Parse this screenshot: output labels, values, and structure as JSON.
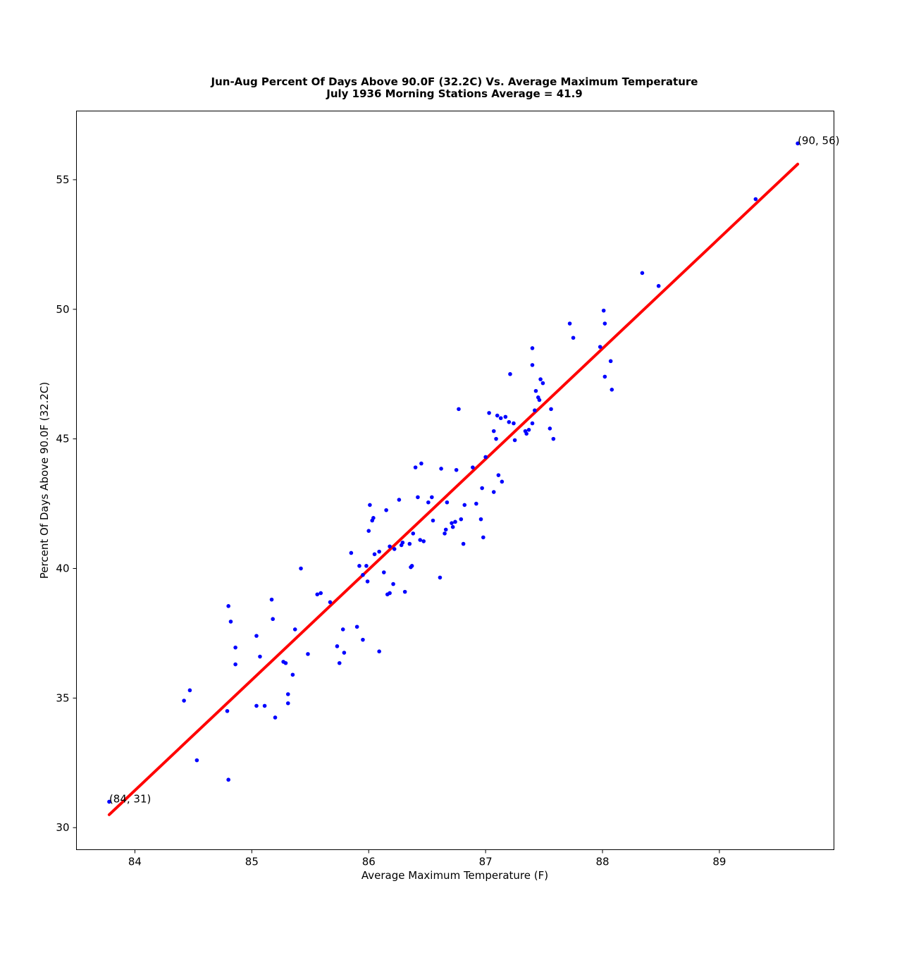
{
  "chart_data": {
    "type": "scatter",
    "title": "Jun-Aug Percent Of Days Above 90.0F (32.2C) Vs. Average Maximum Temperature",
    "subtitle": "July 1936 Morning Stations  Average = 41.9",
    "xlabel": "Average Maximum Temperature (F)",
    "ylabel": "Percent Of Days Above 90.0F (32.2C)",
    "xlim": [
      83.5,
      89.98
    ],
    "ylim": [
      29.15,
      57.65
    ],
    "xticks": [
      84,
      85,
      86,
      87,
      88,
      89
    ],
    "yticks": [
      30,
      35,
      40,
      45,
      50,
      55
    ],
    "grid": false,
    "point_color": "#0000ff",
    "line_color": "#ff0000",
    "fit_line": {
      "x": [
        83.78,
        89.67
      ],
      "y": [
        30.5,
        55.6
      ]
    },
    "annotations": [
      {
        "text": "(84, 31)",
        "x": 83.78,
        "y": 31.0
      },
      {
        "text": "(90, 56)",
        "x": 89.67,
        "y": 56.4
      }
    ],
    "points": [
      [
        83.78,
        31.0
      ],
      [
        84.42,
        34.9
      ],
      [
        84.47,
        35.3
      ],
      [
        84.53,
        32.6
      ],
      [
        84.79,
        34.5
      ],
      [
        84.8,
        31.85
      ],
      [
        84.8,
        38.55
      ],
      [
        84.82,
        37.95
      ],
      [
        84.86,
        36.95
      ],
      [
        84.86,
        36.3
      ],
      [
        85.04,
        37.4
      ],
      [
        85.07,
        36.6
      ],
      [
        85.04,
        34.7
      ],
      [
        85.11,
        34.7
      ],
      [
        85.17,
        38.8
      ],
      [
        85.18,
        38.05
      ],
      [
        85.2,
        34.25
      ],
      [
        85.27,
        36.4
      ],
      [
        85.29,
        36.35
      ],
      [
        85.31,
        34.8
      ],
      [
        85.31,
        35.15
      ],
      [
        85.35,
        35.9
      ],
      [
        85.37,
        37.65
      ],
      [
        85.42,
        40.0
      ],
      [
        85.48,
        36.7
      ],
      [
        85.56,
        39.0
      ],
      [
        85.59,
        39.05
      ],
      [
        85.67,
        38.7
      ],
      [
        85.73,
        37.0
      ],
      [
        85.75,
        36.35
      ],
      [
        85.78,
        37.65
      ],
      [
        85.79,
        36.75
      ],
      [
        85.85,
        40.6
      ],
      [
        85.9,
        37.75
      ],
      [
        85.92,
        40.1
      ],
      [
        85.95,
        37.25
      ],
      [
        85.95,
        39.75
      ],
      [
        85.98,
        40.1
      ],
      [
        85.99,
        39.5
      ],
      [
        86.0,
        41.45
      ],
      [
        86.01,
        42.45
      ],
      [
        86.03,
        41.85
      ],
      [
        86.04,
        41.95
      ],
      [
        86.05,
        40.55
      ],
      [
        86.09,
        40.65
      ],
      [
        86.09,
        36.8
      ],
      [
        86.13,
        39.85
      ],
      [
        86.15,
        42.25
      ],
      [
        86.16,
        39.0
      ],
      [
        86.18,
        39.05
      ],
      [
        86.18,
        40.85
      ],
      [
        86.21,
        39.4
      ],
      [
        86.22,
        40.75
      ],
      [
        86.26,
        42.65
      ],
      [
        86.28,
        40.9
      ],
      [
        86.29,
        41.0
      ],
      [
        86.31,
        39.1
      ],
      [
        86.35,
        40.95
      ],
      [
        86.36,
        40.05
      ],
      [
        86.37,
        40.1
      ],
      [
        86.38,
        41.35
      ],
      [
        86.4,
        43.9
      ],
      [
        86.42,
        42.75
      ],
      [
        86.44,
        41.1
      ],
      [
        86.45,
        44.05
      ],
      [
        86.47,
        41.05
      ],
      [
        86.51,
        42.55
      ],
      [
        86.54,
        42.75
      ],
      [
        86.55,
        41.85
      ],
      [
        86.61,
        39.65
      ],
      [
        86.62,
        43.85
      ],
      [
        86.65,
        41.35
      ],
      [
        86.66,
        41.5
      ],
      [
        86.67,
        42.55
      ],
      [
        86.71,
        41.75
      ],
      [
        86.72,
        41.6
      ],
      [
        86.74,
        41.8
      ],
      [
        86.75,
        43.8
      ],
      [
        86.77,
        46.15
      ],
      [
        86.79,
        41.9
      ],
      [
        86.81,
        40.95
      ],
      [
        86.82,
        42.45
      ],
      [
        86.89,
        43.9
      ],
      [
        86.92,
        42.5
      ],
      [
        86.96,
        41.9
      ],
      [
        86.97,
        43.1
      ],
      [
        86.98,
        41.2
      ],
      [
        87.0,
        44.3
      ],
      [
        87.03,
        46.0
      ],
      [
        87.07,
        42.95
      ],
      [
        87.07,
        45.3
      ],
      [
        87.09,
        45.0
      ],
      [
        87.1,
        45.9
      ],
      [
        87.11,
        43.6
      ],
      [
        87.13,
        45.8
      ],
      [
        87.14,
        43.35
      ],
      [
        87.17,
        45.85
      ],
      [
        87.2,
        45.65
      ],
      [
        87.21,
        47.5
      ],
      [
        87.24,
        45.6
      ],
      [
        87.25,
        44.95
      ],
      [
        87.34,
        45.3
      ],
      [
        87.35,
        45.2
      ],
      [
        87.37,
        45.35
      ],
      [
        87.4,
        45.6
      ],
      [
        87.4,
        48.5
      ],
      [
        87.4,
        47.85
      ],
      [
        87.42,
        46.1
      ],
      [
        87.43,
        46.85
      ],
      [
        87.45,
        46.6
      ],
      [
        87.46,
        46.5
      ],
      [
        87.47,
        47.3
      ],
      [
        87.49,
        47.15
      ],
      [
        87.55,
        45.4
      ],
      [
        87.56,
        46.15
      ],
      [
        87.58,
        45.0
      ],
      [
        87.72,
        49.45
      ],
      [
        87.75,
        48.9
      ],
      [
        87.98,
        48.55
      ],
      [
        88.01,
        49.95
      ],
      [
        88.02,
        49.45
      ],
      [
        88.02,
        47.4
      ],
      [
        88.07,
        48.0
      ],
      [
        88.08,
        46.9
      ],
      [
        88.34,
        51.4
      ],
      [
        88.48,
        50.9
      ],
      [
        89.31,
        54.25
      ],
      [
        89.67,
        56.4
      ]
    ]
  }
}
